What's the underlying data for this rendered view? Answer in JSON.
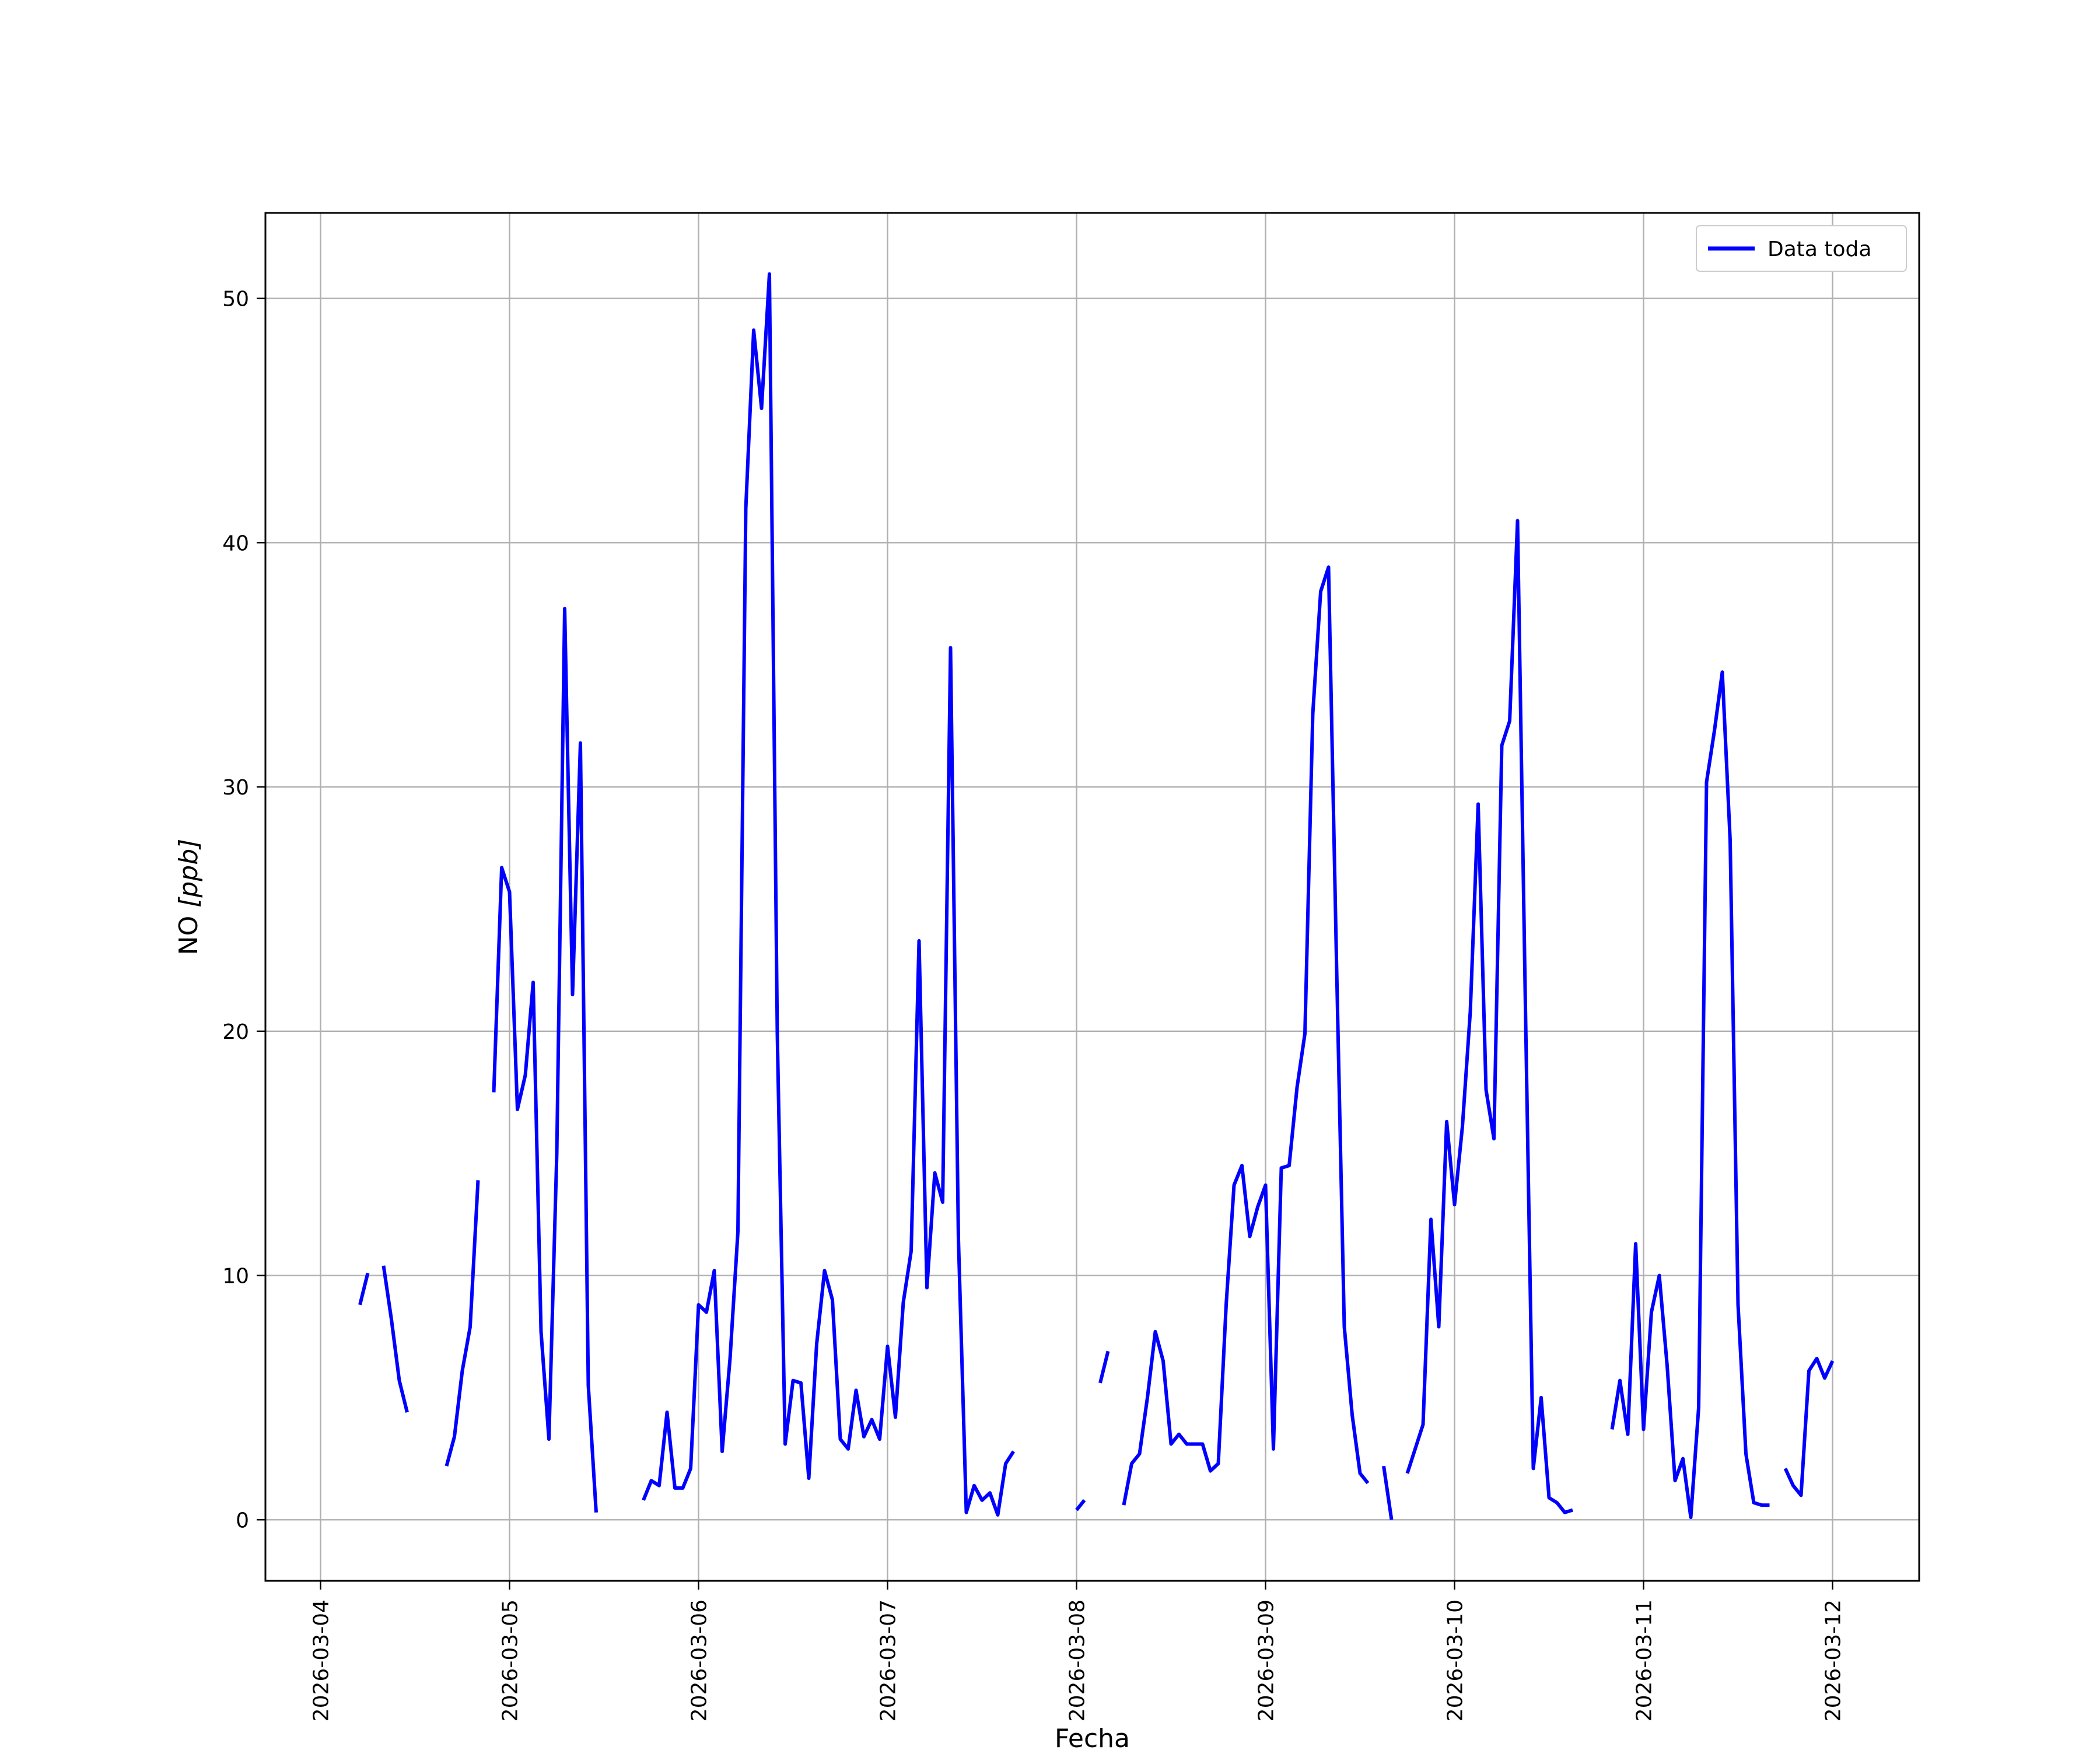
{
  "chart_data": {
    "type": "line",
    "title": "",
    "xlabel": "Fecha",
    "ylabel_main": "NO ",
    "ylabel_unit": "[ppb]",
    "x_tick_labels": [
      "2026-03-04",
      "2026-03-05",
      "2026-03-06",
      "2026-03-07",
      "2026-03-08",
      "2026-03-09",
      "2026-03-10",
      "2026-03-11",
      "2026-03-12"
    ],
    "xlim": [
      "2026-03-03 17:00",
      "2026-03-12 11:00"
    ],
    "y_ticks": [
      0,
      10,
      20,
      30,
      40,
      50
    ],
    "ylim": [
      -2.5,
      53.5
    ],
    "grid": true,
    "legend": {
      "position": "top-right"
    },
    "series": [
      {
        "name": "Data toda",
        "color": "#0000ff",
        "segments": [
          [
            [
              "2026-03-04 05:00",
              8.8
            ],
            [
              "2026-03-04 06:00",
              10.1
            ]
          ],
          [
            [
              "2026-03-04 08:00",
              10.4
            ],
            [
              "2026-03-04 09:00",
              8.2
            ],
            [
              "2026-03-04 10:00",
              5.7
            ],
            [
              "2026-03-04 11:00",
              4.4
            ]
          ],
          [
            [
              "2026-03-04 16:00",
              2.2
            ],
            [
              "2026-03-04 17:00",
              3.4
            ],
            [
              "2026-03-04 18:00",
              6.1
            ],
            [
              "2026-03-04 19:00",
              7.9
            ],
            [
              "2026-03-04 20:00",
              13.9
            ]
          ],
          [
            [
              "2026-03-04 22:00",
              17.5
            ],
            [
              "2026-03-04 23:00",
              26.7
            ],
            [
              "2026-03-05 00:00",
              25.7
            ],
            [
              "2026-03-05 01:00",
              16.8
            ],
            [
              "2026-03-05 02:00",
              18.2
            ],
            [
              "2026-03-05 03:00",
              22.0
            ],
            [
              "2026-03-05 04:00",
              7.7
            ],
            [
              "2026-03-05 05:00",
              3.3
            ],
            [
              "2026-03-05 06:00",
              15.0
            ],
            [
              "2026-03-05 07:00",
              37.3
            ],
            [
              "2026-03-05 08:00",
              21.5
            ],
            [
              "2026-03-05 09:00",
              31.8
            ],
            [
              "2026-03-05 10:00",
              5.5
            ],
            [
              "2026-03-05 11:00",
              0.3
            ]
          ],
          [
            [
              "2026-03-05 17:00",
              0.8
            ],
            [
              "2026-03-05 18:00",
              1.6
            ],
            [
              "2026-03-05 19:00",
              1.4
            ],
            [
              "2026-03-05 20:00",
              4.4
            ],
            [
              "2026-03-05 21:00",
              1.3
            ],
            [
              "2026-03-05 22:00",
              1.3
            ],
            [
              "2026-03-05 23:00",
              2.1
            ],
            [
              "2026-03-06 00:00",
              8.8
            ],
            [
              "2026-03-06 01:00",
              8.5
            ],
            [
              "2026-03-06 02:00",
              10.2
            ],
            [
              "2026-03-06 03:00",
              2.8
            ],
            [
              "2026-03-06 04:00",
              6.6
            ],
            [
              "2026-03-06 05:00",
              11.8
            ],
            [
              "2026-03-06 06:00",
              41.4
            ],
            [
              "2026-03-06 07:00",
              48.7
            ],
            [
              "2026-03-06 08:00",
              45.5
            ],
            [
              "2026-03-06 09:00",
              51.0
            ],
            [
              "2026-03-06 10:00",
              19.9
            ],
            [
              "2026-03-06 11:00",
              3.1
            ],
            [
              "2026-03-06 12:00",
              5.7
            ],
            [
              "2026-03-06 13:00",
              5.6
            ],
            [
              "2026-03-06 14:00",
              1.7
            ],
            [
              "2026-03-06 15:00",
              7.2
            ],
            [
              "2026-03-06 16:00",
              10.2
            ],
            [
              "2026-03-06 17:00",
              9.0
            ],
            [
              "2026-03-06 18:00",
              3.3
            ],
            [
              "2026-03-06 19:00",
              2.9
            ],
            [
              "2026-03-06 20:00",
              5.3
            ],
            [
              "2026-03-06 21:00",
              3.4
            ],
            [
              "2026-03-06 22:00",
              4.1
            ],
            [
              "2026-03-06 23:00",
              3.3
            ],
            [
              "2026-03-07 00:00",
              7.1
            ],
            [
              "2026-03-07 01:00",
              4.2
            ],
            [
              "2026-03-07 02:00",
              8.9
            ],
            [
              "2026-03-07 03:00",
              11.0
            ],
            [
              "2026-03-07 04:00",
              23.7
            ],
            [
              "2026-03-07 05:00",
              9.5
            ],
            [
              "2026-03-07 06:00",
              14.2
            ],
            [
              "2026-03-07 07:00",
              13.0
            ],
            [
              "2026-03-07 08:00",
              35.7
            ],
            [
              "2026-03-07 09:00",
              11.5
            ],
            [
              "2026-03-07 10:00",
              0.3
            ],
            [
              "2026-03-07 11:00",
              1.4
            ],
            [
              "2026-03-07 12:00",
              0.8
            ],
            [
              "2026-03-07 13:00",
              1.1
            ],
            [
              "2026-03-07 14:00",
              0.2
            ],
            [
              "2026-03-07 15:00",
              2.3
            ],
            [
              "2026-03-07 16:00",
              2.8
            ]
          ],
          [
            [
              "2026-03-08 00:00",
              0.4
            ],
            [
              "2026-03-08 01:00",
              0.8
            ]
          ],
          [
            [
              "2026-03-08 03:00",
              5.6
            ],
            [
              "2026-03-08 04:00",
              6.9
            ]
          ],
          [
            [
              "2026-03-08 06:00",
              0.6
            ],
            [
              "2026-03-08 07:00",
              2.3
            ],
            [
              "2026-03-08 08:00",
              2.7
            ],
            [
              "2026-03-08 09:00",
              5.0
            ],
            [
              "2026-03-08 10:00",
              7.7
            ],
            [
              "2026-03-08 11:00",
              6.5
            ],
            [
              "2026-03-08 12:00",
              3.1
            ],
            [
              "2026-03-08 13:00",
              3.5
            ],
            [
              "2026-03-08 14:00",
              3.1
            ],
            [
              "2026-03-08 15:00",
              3.1
            ],
            [
              "2026-03-08 16:00",
              3.1
            ],
            [
              "2026-03-08 17:00",
              2.0
            ],
            [
              "2026-03-08 18:00",
              2.3
            ],
            [
              "2026-03-08 19:00",
              8.8
            ],
            [
              "2026-03-08 20:00",
              13.7
            ],
            [
              "2026-03-08 21:00",
              14.5
            ],
            [
              "2026-03-08 22:00",
              11.6
            ],
            [
              "2026-03-08 23:00",
              12.8
            ],
            [
              "2026-03-09 00:00",
              13.7
            ],
            [
              "2026-03-09 01:00",
              2.9
            ],
            [
              "2026-03-09 02:00",
              14.4
            ],
            [
              "2026-03-09 03:00",
              14.5
            ],
            [
              "2026-03-09 04:00",
              17.7
            ],
            [
              "2026-03-09 05:00",
              19.9
            ],
            [
              "2026-03-09 06:00",
              33.0
            ],
            [
              "2026-03-09 07:00",
              38.0
            ],
            [
              "2026-03-09 08:00",
              39.0
            ],
            [
              "2026-03-09 09:00",
              23.0
            ],
            [
              "2026-03-09 10:00",
              7.9
            ],
            [
              "2026-03-09 11:00",
              4.3
            ],
            [
              "2026-03-09 12:00",
              1.9
            ],
            [
              "2026-03-09 13:00",
              1.5
            ]
          ],
          [
            [
              "2026-03-09 15:00",
              2.2
            ],
            [
              "2026-03-09 16:00",
              0.0
            ]
          ],
          [
            [
              "2026-03-09 18:00",
              1.9
            ],
            [
              "2026-03-09 19:00",
              2.9
            ],
            [
              "2026-03-09 20:00",
              3.9
            ],
            [
              "2026-03-09 21:00",
              12.3
            ],
            [
              "2026-03-09 22:00",
              7.9
            ],
            [
              "2026-03-09 23:00",
              16.3
            ],
            [
              "2026-03-10 00:00",
              12.9
            ],
            [
              "2026-03-10 01:00",
              16.1
            ],
            [
              "2026-03-10 02:00",
              20.8
            ],
            [
              "2026-03-10 03:00",
              29.3
            ],
            [
              "2026-03-10 04:00",
              17.6
            ],
            [
              "2026-03-10 05:00",
              15.6
            ],
            [
              "2026-03-10 06:00",
              31.7
            ],
            [
              "2026-03-10 07:00",
              32.7
            ],
            [
              "2026-03-10 08:00",
              40.9
            ],
            [
              "2026-03-10 09:00",
              21.0
            ],
            [
              "2026-03-10 10:00",
              2.1
            ],
            [
              "2026-03-10 11:00",
              5.0
            ],
            [
              "2026-03-10 12:00",
              0.9
            ],
            [
              "2026-03-10 13:00",
              0.7
            ],
            [
              "2026-03-10 14:00",
              0.3
            ],
            [
              "2026-03-10 15:00",
              0.4
            ]
          ],
          [
            [
              "2026-03-10 20:00",
              3.7
            ],
            [
              "2026-03-10 21:00",
              5.7
            ],
            [
              "2026-03-10 22:00",
              3.5
            ],
            [
              "2026-03-10 23:00",
              11.3
            ],
            [
              "2026-03-11 00:00",
              3.7
            ],
            [
              "2026-03-11 01:00",
              8.5
            ],
            [
              "2026-03-11 02:00",
              10.0
            ],
            [
              "2026-03-11 03:00",
              6.3
            ],
            [
              "2026-03-11 04:00",
              1.6
            ],
            [
              "2026-03-11 05:00",
              2.5
            ],
            [
              "2026-03-11 06:00",
              0.1
            ],
            [
              "2026-03-11 07:00",
              4.6
            ],
            [
              "2026-03-11 08:00",
              30.2
            ],
            [
              "2026-03-11 09:00",
              32.3
            ],
            [
              "2026-03-11 10:00",
              34.7
            ],
            [
              "2026-03-11 11:00",
              27.8
            ],
            [
              "2026-03-11 12:00",
              8.8
            ],
            [
              "2026-03-11 13:00",
              2.7
            ],
            [
              "2026-03-11 14:00",
              0.7
            ],
            [
              "2026-03-11 15:00",
              0.6
            ],
            [
              "2026-03-11 16:00",
              0.6
            ]
          ],
          [
            [
              "2026-03-11 18:00",
              2.1
            ],
            [
              "2026-03-11 19:00",
              1.4
            ],
            [
              "2026-03-11 20:00",
              1.0
            ],
            [
              "2026-03-11 21:00",
              6.1
            ],
            [
              "2026-03-11 22:00",
              6.6
            ],
            [
              "2026-03-11 23:00",
              5.8
            ],
            [
              "2026-03-12 00:00",
              6.5
            ]
          ]
        ]
      }
    ]
  }
}
